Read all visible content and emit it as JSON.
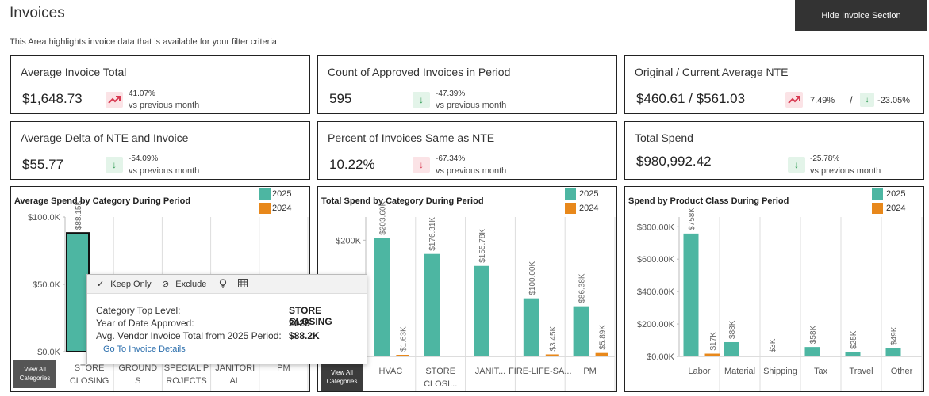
{
  "header": {
    "title": "Invoices",
    "subtitle": "This Area highlights invoice data that is available for your filter criteria",
    "hide_button": "Hide Invoice Section"
  },
  "kpis": {
    "avg_invoice_total": {
      "label": "Average Invoice Total",
      "value": "$1,648.73",
      "change": "41.07%",
      "compare": "vs previous month",
      "trend": "up"
    },
    "approved_count": {
      "label": "Count of Approved Invoices in Period",
      "value": "595",
      "change": "-47.39%",
      "compare": "vs previous month",
      "trend": "down"
    },
    "nte": {
      "label": "Original / Current Average NTE",
      "value": "$460.61 / $561.03",
      "change_original": "7.49%",
      "separator": "/",
      "change_current": "-23.05%",
      "trend_original": "up",
      "trend_current": "down"
    },
    "avg_delta": {
      "label": "Average Delta of NTE and Invoice",
      "value": "$55.77",
      "change": "-54.09%",
      "compare": "vs previous month",
      "trend": "down"
    },
    "pct_same": {
      "label": "Percent of Invoices Same as NTE",
      "value": "10.22%",
      "change": "-67.34%",
      "compare": "vs previous month",
      "trend": "down"
    },
    "total_spend": {
      "label": "Total Spend",
      "value": "$980,992.42",
      "change": "-25.78%",
      "compare": "vs previous month",
      "trend": "down"
    }
  },
  "colors": {
    "series_2025": "#4db6a2",
    "series_2024": "#e8881b",
    "up_bg": "#fbe3e6",
    "down_bg": "#e3f4e9"
  },
  "view_all_label": "View All Categories",
  "chart_data": [
    {
      "type": "bar",
      "title": "Average Spend by Category During Period",
      "categories": [
        "STORE CLOSING",
        "GROUNDS",
        "SPECIAL PROJECTS",
        "JANITORIAL",
        "PM"
      ],
      "category_labels": [
        [
          "STORE",
          "CLOSING"
        ],
        [
          "GROUND",
          "S"
        ],
        [
          "SPECIAL P",
          "ROJECTS"
        ],
        [
          "JANITORI",
          "AL"
        ],
        [
          "PM"
        ]
      ],
      "series": [
        {
          "name": "2025",
          "values": [
            88150,
            null,
            null,
            null,
            null
          ],
          "labels": [
            "$88.15K",
            "",
            "",
            "",
            ""
          ]
        },
        {
          "name": "2024",
          "values": [
            null,
            null,
            null,
            null,
            null
          ],
          "labels": [
            "",
            "",
            "",
            "",
            ""
          ]
        }
      ],
      "yticks": [
        "$0.0K",
        "$50.0K",
        "$100.0K"
      ],
      "ylim": [
        0,
        100000
      ],
      "selected_category": "STORE CLOSING"
    },
    {
      "type": "bar",
      "title": "Total Spend by Category During Period",
      "categories": [
        "HVAC",
        "STORE CLOSING",
        "JANITORIAL",
        "FIRE-LIFE-SAFETY",
        "PM"
      ],
      "category_labels": [
        [
          "HVAC"
        ],
        [
          "STORE",
          "CLOSI..."
        ],
        [
          "JANIT..."
        ],
        [
          "FIRE-LIFE-SA..."
        ],
        [
          "PM"
        ]
      ],
      "series": [
        {
          "name": "2025",
          "values": [
            203600,
            176310,
            155780,
            100000,
            86380
          ],
          "labels": [
            "$203.60K",
            "$176.31K",
            "$155.78K",
            "$100.00K",
            "$86.38K"
          ]
        },
        {
          "name": "2024",
          "values": [
            1630,
            null,
            null,
            3450,
            5890
          ],
          "labels": [
            "$1.63K",
            "",
            "",
            "$3.45K",
            "$5.89K"
          ]
        }
      ],
      "yticks": [
        "$200K"
      ],
      "ylim": [
        0,
        240000
      ]
    },
    {
      "type": "bar",
      "title": "Spend by Product Class During Period",
      "categories": [
        "Labor",
        "Material",
        "Shipping",
        "Tax",
        "Travel",
        "Other"
      ],
      "category_labels": [
        [
          "Labor"
        ],
        [
          "Material"
        ],
        [
          "Shipping"
        ],
        [
          "Tax"
        ],
        [
          "Travel"
        ],
        [
          "Other"
        ]
      ],
      "series": [
        {
          "name": "2025",
          "values": [
            758000,
            88000,
            3000,
            58000,
            25000,
            49000
          ],
          "labels": [
            "$758K",
            "$88K",
            "$3K",
            "$58K",
            "$25K",
            "$49K"
          ]
        },
        {
          "name": "2024",
          "values": [
            17000,
            null,
            null,
            null,
            null,
            null
          ],
          "labels": [
            "$17K",
            "",
            "",
            "",
            "",
            ""
          ]
        }
      ],
      "yticks": [
        "$0.00K",
        "$200.00K",
        "$400.00K",
        "$600.00K",
        "$800.00K"
      ],
      "ylim": [
        0,
        860000
      ]
    }
  ],
  "tooltip": {
    "keep_only": "Keep Only",
    "exclude": "Exclude",
    "rows": [
      {
        "label": "Category Top Level:",
        "value": "STORE CLOSING"
      },
      {
        "label": "Year of Date Approved:",
        "value": "2025"
      },
      {
        "label": "Avg. Vendor Invoice Total from 2025 Period:",
        "value": "$88.2K"
      }
    ],
    "link": "Go To Invoice Details"
  }
}
